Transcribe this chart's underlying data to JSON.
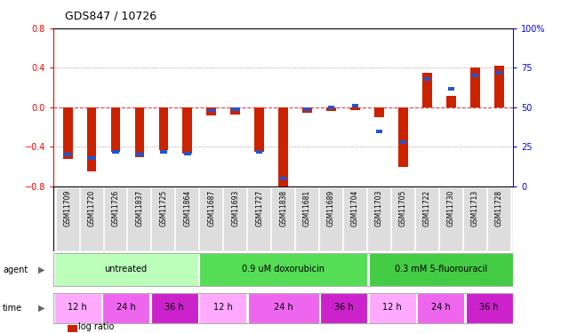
{
  "title": "GDS847 / 10726",
  "samples": [
    "GSM11709",
    "GSM11720",
    "GSM11726",
    "GSM11837",
    "GSM11725",
    "GSM11864",
    "GSM11687",
    "GSM11693",
    "GSM11727",
    "GSM11838",
    "GSM11681",
    "GSM11689",
    "GSM11704",
    "GSM11703",
    "GSM11705",
    "GSM11722",
    "GSM11730",
    "GSM11713",
    "GSM11728"
  ],
  "log_ratio": [
    -0.52,
    -0.65,
    -0.45,
    -0.5,
    -0.43,
    -0.47,
    -0.08,
    -0.07,
    -0.45,
    -0.8,
    -0.05,
    -0.04,
    -0.03,
    -0.1,
    -0.6,
    0.35,
    0.12,
    0.4,
    0.42
  ],
  "percentile": [
    20,
    18,
    22,
    20,
    22,
    21,
    48,
    49,
    22,
    5,
    49,
    50,
    51,
    35,
    28,
    68,
    62,
    70,
    72
  ],
  "ylim_left": [
    -0.8,
    0.8
  ],
  "ylim_right": [
    0,
    100
  ],
  "yticks_left": [
    -0.8,
    -0.4,
    0.0,
    0.4,
    0.8
  ],
  "yticks_right": [
    0,
    25,
    50,
    75,
    100
  ],
  "bar_color": "#cc2200",
  "pct_color": "#2255cc",
  "agent_groups": [
    {
      "label": "untreated",
      "start": 0,
      "end": 6,
      "color": "#bbffbb"
    },
    {
      "label": "0.9 uM doxorubicin",
      "start": 6,
      "end": 13,
      "color": "#55dd55"
    },
    {
      "label": "0.3 mM 5-fluorouracil",
      "start": 13,
      "end": 19,
      "color": "#44cc44"
    }
  ],
  "time_groups": [
    {
      "label": "12 h",
      "start": 0,
      "end": 2,
      "color": "#ffaaff"
    },
    {
      "label": "24 h",
      "start": 2,
      "end": 4,
      "color": "#ee66ee"
    },
    {
      "label": "36 h",
      "start": 4,
      "end": 6,
      "color": "#cc22cc"
    },
    {
      "label": "12 h",
      "start": 6,
      "end": 8,
      "color": "#ffaaff"
    },
    {
      "label": "24 h",
      "start": 8,
      "end": 11,
      "color": "#ee66ee"
    },
    {
      "label": "36 h",
      "start": 11,
      "end": 13,
      "color": "#cc22cc"
    },
    {
      "label": "12 h",
      "start": 13,
      "end": 15,
      "color": "#ffaaff"
    },
    {
      "label": "24 h",
      "start": 15,
      "end": 17,
      "color": "#ee66ee"
    },
    {
      "label": "36 h",
      "start": 17,
      "end": 19,
      "color": "#cc22cc"
    }
  ],
  "grid_color": "#888888",
  "background_color": "#ffffff",
  "zero_line_color": "#dd4444",
  "sample_bg_color": "#cccccc",
  "sample_cell_color": "#dddddd"
}
